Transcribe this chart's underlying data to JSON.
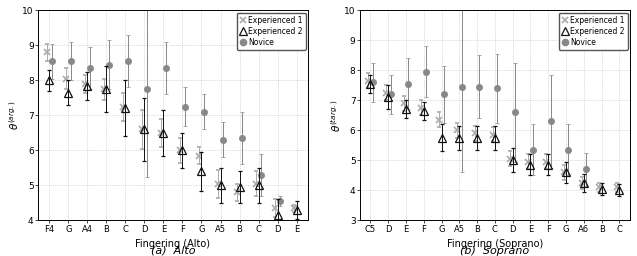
{
  "alto": {
    "categories": [
      "F4",
      "G",
      "A4",
      "B",
      "C",
      "D",
      "E",
      "F",
      "G",
      "A5",
      "B",
      "C",
      "D",
      "E"
    ],
    "exp1": {
      "y": [
        8.8,
        8.05,
        7.9,
        7.75,
        7.25,
        6.6,
        6.5,
        6.0,
        5.85,
        5.05,
        4.8,
        5.05,
        4.35,
        4.35
      ],
      "yerr": [
        0.25,
        0.3,
        0.25,
        0.3,
        0.4,
        0.55,
        0.4,
        0.35,
        0.25,
        0.4,
        0.25,
        0.35,
        0.25,
        0.1
      ]
    },
    "exp2": {
      "y": [
        8.0,
        7.65,
        7.85,
        7.75,
        7.2,
        6.6,
        6.5,
        6.0,
        5.4,
        5.0,
        4.95,
        5.0,
        4.15,
        4.3
      ],
      "yerr": [
        0.3,
        0.35,
        0.4,
        0.65,
        0.8,
        0.9,
        0.65,
        0.5,
        0.55,
        0.5,
        0.45,
        0.5,
        0.45,
        0.25
      ]
    },
    "nov": {
      "y": [
        8.55,
        8.55,
        8.35,
        8.45,
        8.55,
        7.75,
        8.35,
        7.25,
        7.1,
        6.3,
        6.35,
        5.3,
        4.55,
        null
      ],
      "yerr": [
        0.5,
        0.55,
        0.6,
        0.7,
        0.75,
        2.5,
        0.75,
        0.55,
        0.5,
        0.5,
        0.75,
        0.6,
        0.15,
        null
      ]
    },
    "ylabel": "$\\theta^{(arg.)}$",
    "xlabel": "Fingering (Alto)",
    "title": "(a)  Alto",
    "ylim": [
      4,
      10
    ],
    "yticks": [
      4,
      5,
      6,
      7,
      8,
      9,
      10
    ]
  },
  "soprano": {
    "categories": [
      "C5",
      "D",
      "E",
      "F",
      "G",
      "A5",
      "B",
      "C",
      "D",
      "E",
      "F",
      "G",
      "A6",
      "B",
      "C"
    ],
    "exp1": {
      "y": [
        7.65,
        7.25,
        6.9,
        6.75,
        6.35,
        6.0,
        5.9,
        5.85,
        5.05,
        4.95,
        4.95,
        4.6,
        4.25,
        4.1,
        4.1
      ],
      "yerr": [
        0.25,
        0.25,
        0.25,
        0.25,
        0.25,
        0.25,
        0.25,
        0.25,
        0.25,
        0.25,
        0.25,
        0.25,
        0.2,
        0.15,
        0.15
      ]
    },
    "exp2": {
      "y": [
        7.55,
        7.1,
        6.7,
        6.65,
        5.75,
        5.75,
        5.75,
        5.75,
        5.0,
        4.85,
        4.85,
        4.6,
        4.25,
        4.05,
        4.0
      ],
      "yerr": [
        0.3,
        0.4,
        0.3,
        0.3,
        0.45,
        0.4,
        0.4,
        0.4,
        0.4,
        0.35,
        0.35,
        0.35,
        0.3,
        0.2,
        0.2
      ]
    },
    "nov": {
      "y": [
        7.6,
        7.2,
        7.55,
        7.95,
        7.2,
        7.45,
        7.45,
        7.4,
        6.6,
        5.35,
        6.3,
        5.35,
        4.7,
        null,
        null
      ],
      "yerr": [
        0.65,
        0.65,
        0.85,
        0.85,
        0.95,
        2.85,
        1.05,
        1.15,
        1.65,
        0.85,
        1.55,
        0.85,
        0.55,
        null,
        null
      ]
    },
    "ylabel": "$\\theta^{(targ.)}$",
    "xlabel": "Fingering (Soprano)",
    "title": "(b)  Soprano",
    "ylim": [
      3,
      10
    ],
    "yticks": [
      3,
      4,
      5,
      6,
      7,
      8,
      9,
      10
    ]
  },
  "colors": {
    "exp1": "#aaaaaa",
    "exp2": "#111111",
    "nov": "#888888"
  },
  "legend": {
    "exp1_label": "Experienced 1",
    "exp2_label": "Experienced 2",
    "nov_label": "Novice"
  }
}
